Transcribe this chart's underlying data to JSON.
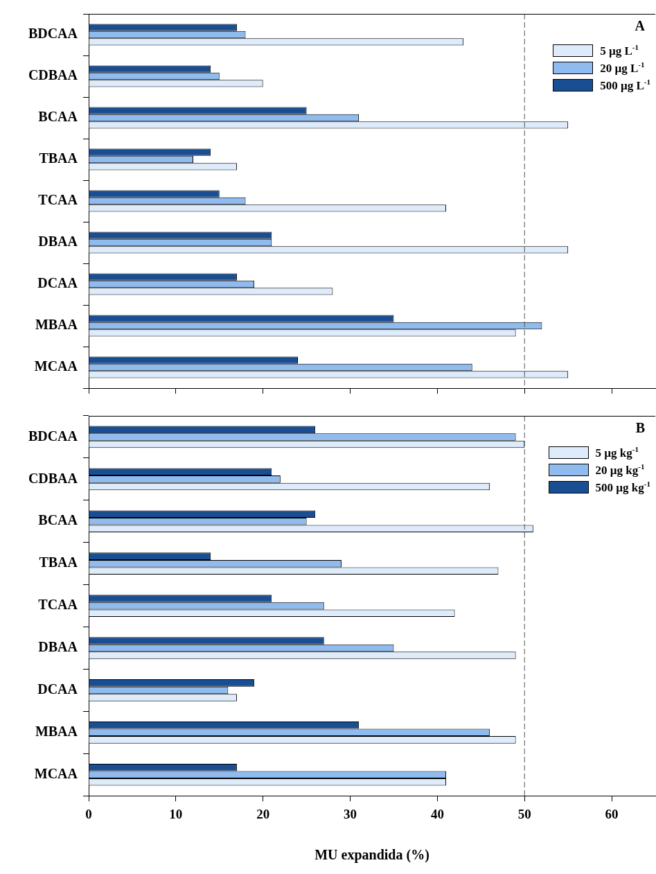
{
  "chart_data": [
    {
      "type": "bar",
      "orientation": "horizontal",
      "categories": [
        "BDCAA",
        "CDBAA",
        "BCAA",
        "TBAA",
        "TCAA",
        "DBAA",
        "DCAA",
        "MBAA",
        "MCAA"
      ],
      "series": [
        {
          "name": "5 µg L$^{-1}$",
          "color": "#deebfb",
          "values": [
            43,
            20,
            55,
            17,
            41,
            55,
            28,
            49,
            55
          ]
        },
        {
          "name": "20 µg L$^{-1}$",
          "color": "#8fbbee",
          "values": [
            18,
            15,
            31,
            12,
            18,
            21,
            19,
            52,
            44
          ]
        },
        {
          "name": "500 µg L$^{-1}$",
          "color": "#1a4e93",
          "values": [
            17,
            14,
            25,
            14,
            15,
            21,
            17,
            35,
            24
          ]
        }
      ],
      "xlim": [
        0,
        65
      ],
      "xticks": [
        0,
        10,
        20,
        30,
        40,
        50,
        60
      ],
      "tick_labels": "y",
      "legend": "top right",
      "grid": false,
      "ref_lines": [
        {
          "axis": "x",
          "value": 50,
          "color": "#555555",
          "line_style": "dashed"
        }
      ],
      "annotations": [
        "A"
      ]
    },
    {
      "type": "bar",
      "orientation": "horizontal",
      "categories": [
        "BDCAA",
        "CDBAA",
        "BCAA",
        "TBAA",
        "TCAA",
        "DBAA",
        "DCAA",
        "MBAA",
        "MCAA"
      ],
      "series": [
        {
          "name": "5 µg kg$^{-1}$",
          "color": "#deebfb",
          "values": [
            50,
            46,
            51,
            47,
            42,
            49,
            17,
            49,
            41
          ]
        },
        {
          "name": "20 µg kg$^{-1}$",
          "color": "#8fbbee",
          "values": [
            49,
            22,
            25,
            29,
            27,
            35,
            16,
            46,
            41
          ]
        },
        {
          "name": "500 µg kg$^{-1}$",
          "color": "#1a4e93",
          "values": [
            26,
            21,
            26,
            14,
            21,
            27,
            19,
            31,
            17
          ]
        }
      ],
      "xlim": [
        0,
        65
      ],
      "xticks": [
        0,
        10,
        20,
        30,
        40,
        50,
        60
      ],
      "xlabel": "MU expandida (%)",
      "legend": "top right",
      "grid": false,
      "ref_lines": [
        {
          "axis": "x",
          "value": 50,
          "color": "#555555",
          "line_style": "dashed"
        }
      ],
      "annotations": [
        "B"
      ]
    }
  ]
}
